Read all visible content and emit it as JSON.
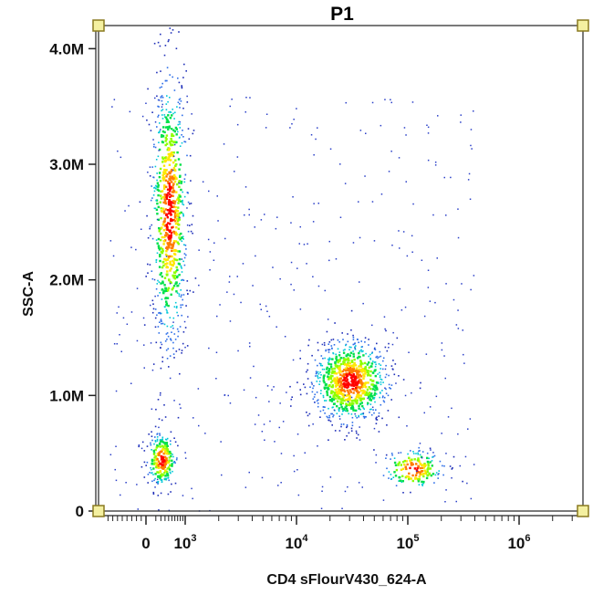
{
  "chart_data": {
    "type": "scatter",
    "title": "P1",
    "xlabel": "CD4 sFlourV430_624-A",
    "ylabel": "SSC-A",
    "x_scale": "biexponential",
    "y_scale": "linear",
    "ylim": [
      0,
      4200000
    ],
    "y_ticks": [
      {
        "value": 0,
        "label": "0"
      },
      {
        "value": 1000000,
        "label": "1.0M"
      },
      {
        "value": 2000000,
        "label": "2.0M"
      },
      {
        "value": 3000000,
        "label": "3.0M"
      },
      {
        "value": 4000000,
        "label": "4.0M"
      }
    ],
    "x_ticks": [
      {
        "value": 0,
        "base": "0",
        "exp": ""
      },
      {
        "value": 1000,
        "base": "10",
        "exp": "3"
      },
      {
        "value": 10000,
        "base": "10",
        "exp": "4"
      },
      {
        "value": 100000,
        "base": "10",
        "exp": "5"
      },
      {
        "value": 1000000,
        "base": "10",
        "exp": "6"
      }
    ],
    "color_scale": "density (blue → cyan → green → yellow → red)",
    "gate": {
      "name": "P1",
      "shape": "rectangle",
      "color": "#f4f0a0",
      "handle_border": "#8a7a20"
    },
    "populations": [
      {
        "x_center": 400,
        "y_center": 2600000,
        "x_spread": 300,
        "y_spread": 600000,
        "relative_count": 0.34
      },
      {
        "x_center": 30000,
        "y_center": 1130000,
        "x_spread": 15000,
        "y_spread": 180000,
        "relative_count": 0.36
      },
      {
        "x_center": 200,
        "y_center": 450000,
        "x_spread": 150,
        "y_spread": 120000,
        "relative_count": 0.1
      },
      {
        "x_center": 110000,
        "y_center": 370000,
        "x_spread": 40000,
        "y_spread": 90000,
        "relative_count": 0.07
      }
    ]
  }
}
